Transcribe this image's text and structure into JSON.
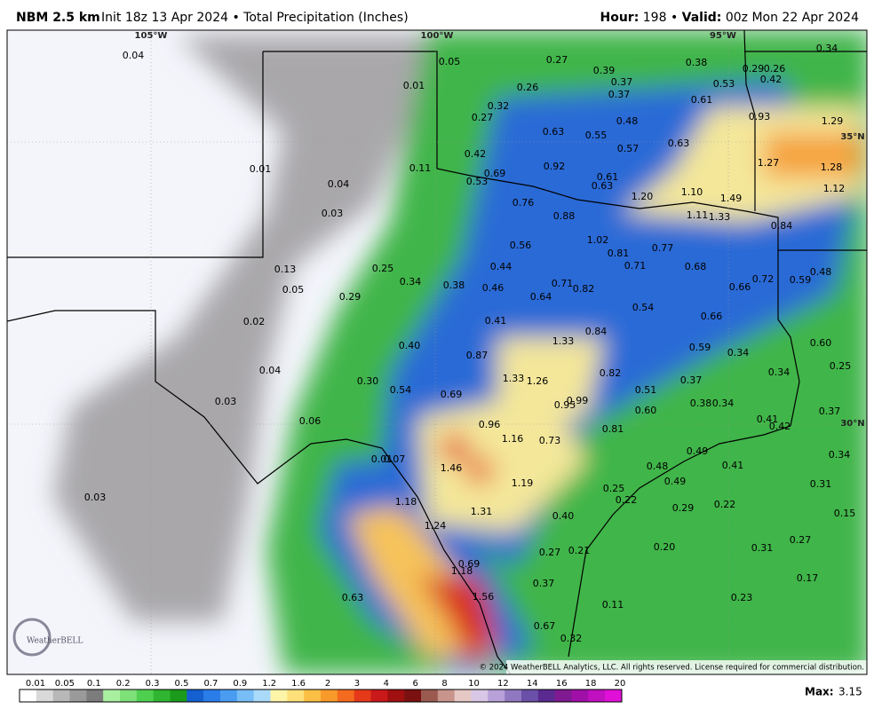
{
  "header": {
    "title": "NBM 2.5 km",
    "init": "Init 18z 13 Apr 2024 • Total Precipitation (Inches)",
    "hour_label": "Hour:",
    "hour": "198 •",
    "valid_label": "Valid:",
    "valid": "00z Mon 22 Apr 2024"
  },
  "map": {
    "grid_labels": [
      "105°W",
      "100°W",
      "95°W",
      "35°N",
      "30°N"
    ],
    "point_labels": [
      "0.04",
      "0.01",
      "0.05",
      "0.27",
      "0.39",
      "0.38",
      "0.29",
      "0.26",
      "0.34",
      "0.37",
      "0.42",
      "0.26",
      "0.53",
      "0.37",
      "0.32",
      "0.61",
      "0.27",
      "0.93",
      "1.29",
      "0.48",
      "0.63",
      "0.55",
      "0.57",
      "0.63",
      "0.01",
      "0.11",
      "0.42",
      "0.92",
      "1.27",
      "1.28",
      "0.69",
      "0.61",
      "0.53",
      "0.63",
      "0.04",
      "1.12",
      "1.20",
      "1.10",
      "1.49",
      "0.76",
      "0.03",
      "0.88",
      "1.11",
      "1.33",
      "0.84",
      "1.02",
      "0.56",
      "0.77",
      "0.81",
      "0.13",
      "0.25",
      "0.44",
      "0.71",
      "0.68",
      "0.48",
      "0.34",
      "0.38",
      "0.46",
      "0.71",
      "0.82",
      "0.72",
      "0.59",
      "0.05",
      "0.66",
      "0.29",
      "0.64",
      "0.54",
      "0.02",
      "0.41",
      "0.66",
      "0.84",
      "1.33",
      "0.40",
      "0.59",
      "0.34",
      "0.60",
      "0.87",
      "0.25",
      "0.04",
      "0.82",
      "0.34",
      "1.33",
      "1.26",
      "0.37",
      "0.30",
      "0.54",
      "0.69",
      "0.51",
      "0.03",
      "0.99",
      "0.95",
      "0.38",
      "0.34",
      "0.60",
      "0.37",
      "0.41",
      "0.06",
      "0.96",
      "0.42",
      "0.81",
      "1.16",
      "0.73",
      "0.49",
      "0.01",
      "0.07",
      "0.34",
      "0.48",
      "0.41",
      "1.46",
      "0.49",
      "1.19",
      "0.31",
      "0.25",
      "0.03",
      "1.18",
      "0.22",
      "0.22",
      "0.29",
      "1.31",
      "0.40",
      "0.15",
      "1.24",
      "0.27",
      "0.20",
      "0.31",
      "0.27",
      "0.21",
      "0.69",
      "1.18",
      "0.37",
      "0.17",
      "0.63",
      "1.56",
      "0.23",
      "0.11",
      "0.67",
      "0.32"
    ],
    "copyright": "© 2024 WeatherBELL Analytics, LLC. All rights reserved. License required for commercial distribution.",
    "logo": "WeatherBELL"
  },
  "legend": {
    "ticks": [
      "0.01",
      "0.05",
      "0.1",
      "0.2",
      "0.3",
      "0.5",
      "0.7",
      "0.9",
      "1.2",
      "1.6",
      "2",
      "3",
      "4",
      "6",
      "8",
      "10",
      "12",
      "14",
      "16",
      "18",
      "20"
    ],
    "max_label": "Max:",
    "max_value": "3.15"
  }
}
